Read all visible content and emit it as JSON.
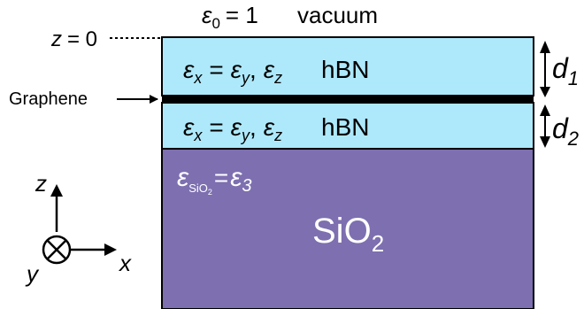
{
  "top": {
    "eps_symbol": "ε",
    "eps_sub": "0",
    "eps_eq": "= 1",
    "medium": "vacuum"
  },
  "z_origin": {
    "z": "z",
    "eq": "= 0"
  },
  "graphene": {
    "label": "Graphene"
  },
  "hbn_top": {
    "ex": "ε",
    "ex_sub": "x",
    "eq": "=",
    "ey": "ε",
    "ey_sub": "y",
    "comma": ",",
    "ez": "ε",
    "ez_sub": "z",
    "name": "hBN"
  },
  "hbn_bottom": {
    "ex": "ε",
    "ex_sub": "x",
    "eq": "=",
    "ey": "ε",
    "ey_sub": "y",
    "comma": ",",
    "ez": "ε",
    "ez_sub": "z",
    "name": "hBN"
  },
  "thickness": {
    "d1": "d",
    "d1_sub": "1",
    "d2": "d",
    "d2_sub": "2"
  },
  "sio2": {
    "eps": "ε",
    "eps_sub_a": "SiO",
    "eps_sub_b": "2",
    "eq": "=",
    "eps3": "ε",
    "eps3_sub": "3",
    "name_a": "SiO",
    "name_b": "2"
  },
  "axes": {
    "z": "z",
    "x": "x",
    "y": "y"
  },
  "colors": {
    "hbn_fill": "#aee9fb",
    "sio2_fill": "#7d6fb0",
    "outline": "#000000",
    "text": "#000000",
    "text_on_sio2": "#ffffff"
  }
}
